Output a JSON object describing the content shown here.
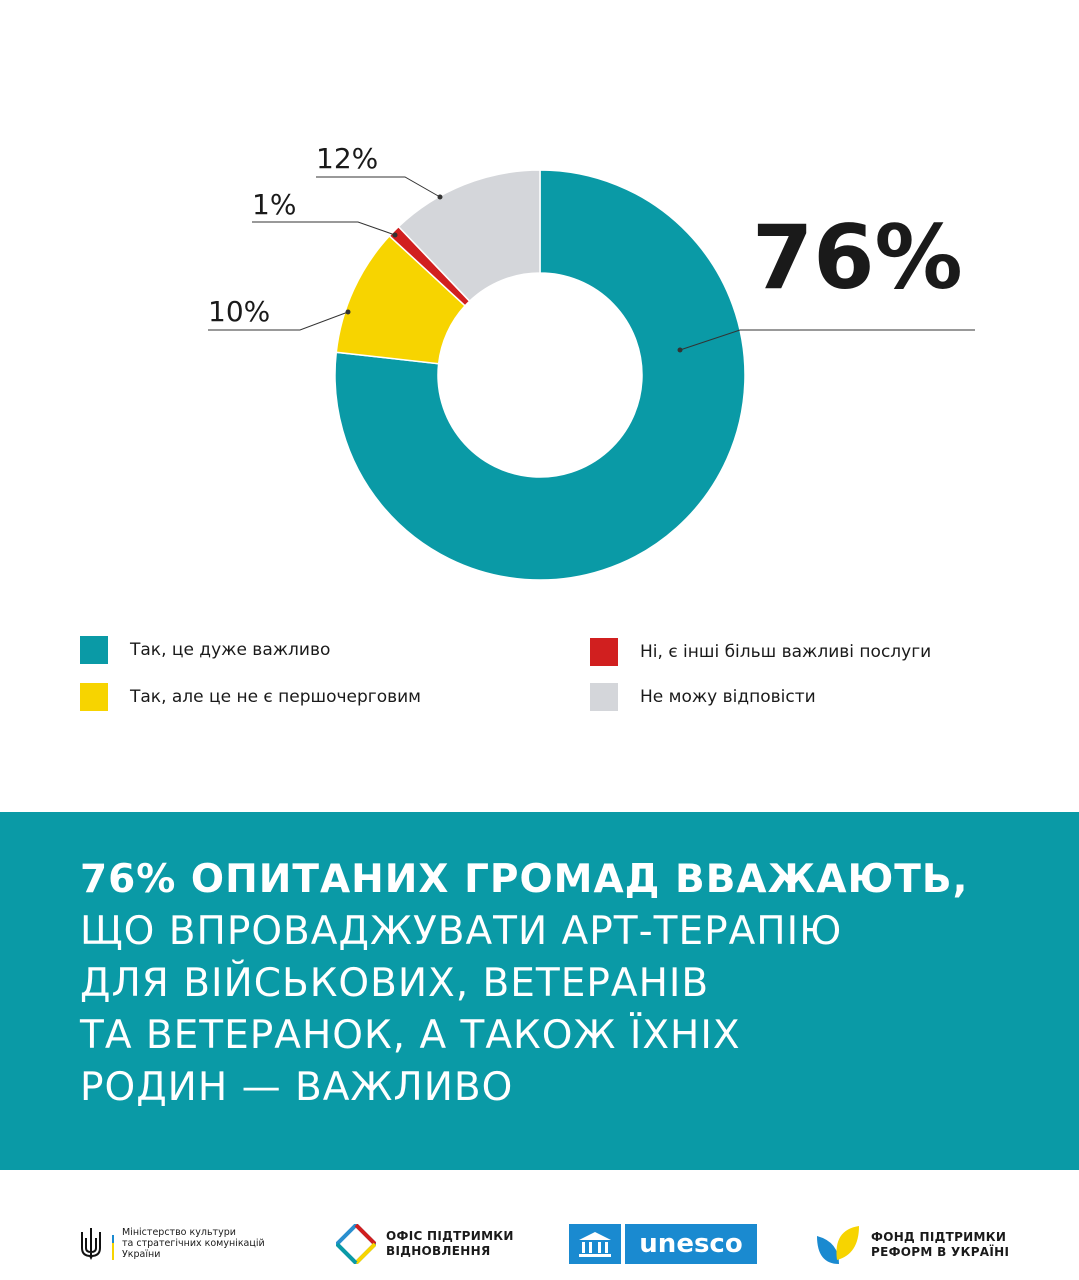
{
  "chart_data": {
    "type": "donut",
    "values": [
      76,
      10,
      1,
      12
    ],
    "labels": [
      "76%",
      "10%",
      "1%",
      "12%"
    ],
    "categories": [
      "Так, це дуже важливо",
      "Так, але це не є першочерговим",
      "Ні, є інші більш важливі послуги",
      "Не можу відповісти"
    ],
    "colors": [
      "#0a9aa6",
      "#f7d400",
      "#d11f1f",
      "#d4d6da"
    ]
  },
  "legend": [
    {
      "label": "Так, це дуже важливо",
      "color": "#0a9aa6"
    },
    {
      "label": "Так, але це не є першочерговим",
      "color": "#f7d400"
    },
    {
      "label": "Ні, є інші більш важливі послуги",
      "color": "#d11f1f"
    },
    {
      "label": "Не можу відповісти",
      "color": "#d4d6da"
    }
  ],
  "headline": {
    "bold_line": "76% ОПИТАНИХ ГРОМАД ВВАЖАЮТЬ,",
    "lines": [
      "ЩО ВПРОВАДЖУВАТИ АРТ-ТЕРАПІЮ",
      "ДЛЯ ВІЙСЬКОВИХ, ВЕТЕРАНІВ",
      "ТА ВЕТЕРАНОК, А ТАКОЖ ЇХНІХ",
      "РОДИН — ВАЖЛИВО"
    ]
  },
  "footer": {
    "ministry": [
      "Міністерство культури",
      "та стратегічних комунікацій",
      "України"
    ],
    "office": [
      "ОФІС ПІДТРИМКИ",
      "ВІДНОВЛЕННЯ"
    ],
    "unesco": "unesco",
    "fund": [
      "ФОНД ПІДТРИМКИ",
      "РЕФОРМ В УКРАЇНІ"
    ]
  },
  "colors": {
    "teal": "#0a9aa6",
    "yellow": "#f7d400",
    "red": "#d11f1f",
    "grey": "#d4d6da",
    "blue": "#1a8ad0"
  }
}
